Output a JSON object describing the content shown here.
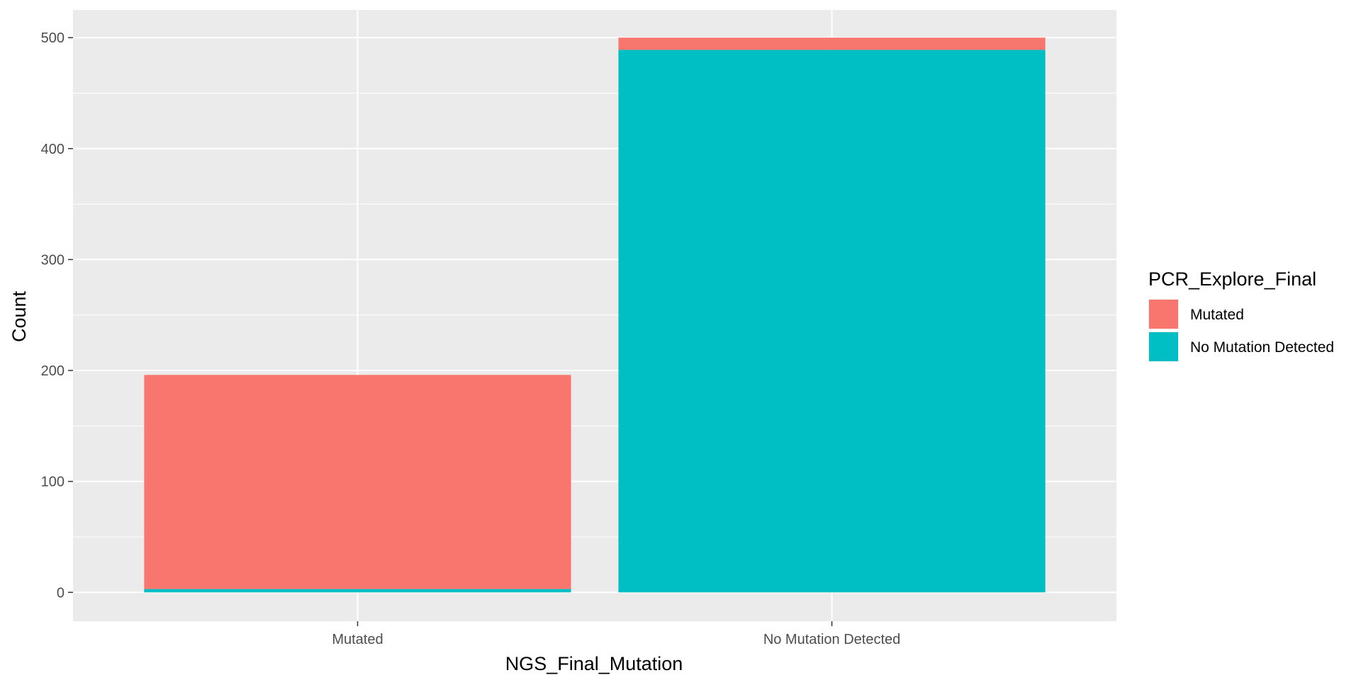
{
  "chart_data": {
    "type": "bar",
    "stacked": true,
    "categories": [
      "Mutated",
      "No Mutation Detected"
    ],
    "series": [
      {
        "name": "Mutated",
        "color": "#F8766D",
        "values": [
          193,
          11
        ]
      },
      {
        "name": "No Mutation Detected",
        "color": "#00BFC4",
        "values": [
          3,
          489
        ]
      }
    ],
    "title": "",
    "xlabel": "NGS_Final_Mutation",
    "ylabel": "Count",
    "ylim": [
      -26,
      525
    ],
    "yticks": [
      0,
      100,
      200,
      300,
      400,
      500
    ],
    "ytick_labels": [
      "0",
      "100",
      "200",
      "300",
      "400",
      "500"
    ],
    "legend": {
      "title": "PCR_Explore_Final",
      "position": "right"
    },
    "grid": true,
    "panel_background": "#EBEBEB"
  }
}
